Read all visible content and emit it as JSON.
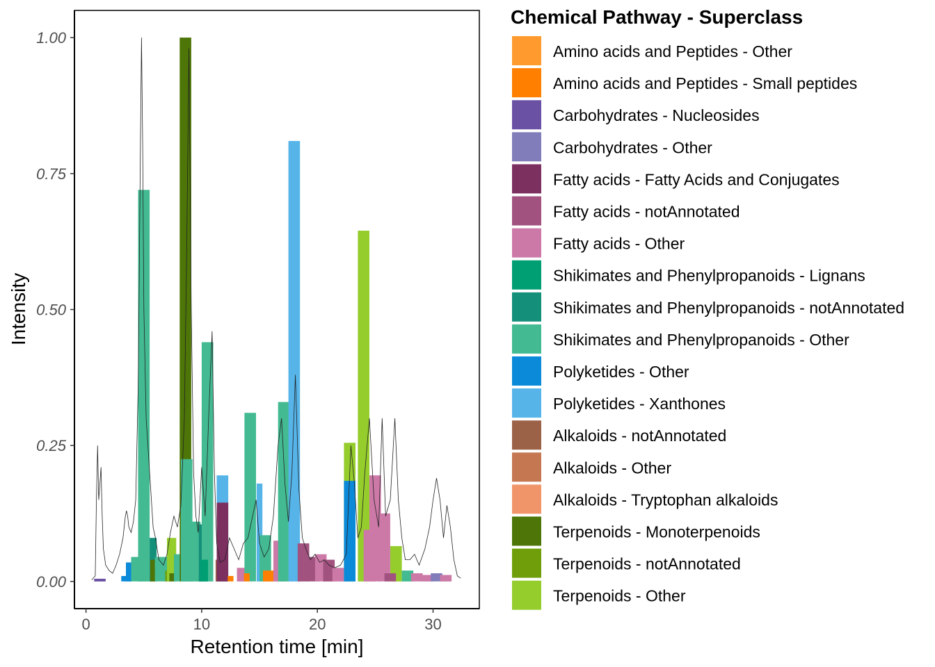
{
  "chart_data": {
    "type": "bar",
    "xlabel": "Retention time [min]",
    "ylabel": "Intensity",
    "xlim": [
      -1,
      34
    ],
    "ylim": [
      -0.05,
      1.05
    ],
    "x_ticks": [
      0,
      10,
      20,
      30
    ],
    "x_tick_labels": [
      "0",
      "10",
      "20",
      "30"
    ],
    "y_ticks": [
      0,
      0.25,
      0.5,
      0.75,
      1.0
    ],
    "y_tick_labels": [
      "0.00",
      "0.25",
      "0.50",
      "0.75",
      "1.00"
    ],
    "grid": false,
    "legend": {
      "title": "Chemical Pathway - Superclass",
      "position": "right",
      "entries": [
        {
          "label": "Amino acids and Peptides - Other",
          "color": "#FF9A2E"
        },
        {
          "label": "Amino acids and Peptides - Small peptides",
          "color": "#FF7F00"
        },
        {
          "label": "Carbohydrates - Nucleosides",
          "color": "#6A51A3"
        },
        {
          "label": "Carbohydrates - Other",
          "color": "#807DBA"
        },
        {
          "label": "Fatty acids - Fatty Acids and Conjugates",
          "color": "#7B3060"
        },
        {
          "label": "Fatty acids - notAnnotated",
          "color": "#A2527F"
        },
        {
          "label": "Fatty acids - Other",
          "color": "#CC79A7"
        },
        {
          "label": "Shikimates and Phenylpropanoids - Lignans",
          "color": "#009E73"
        },
        {
          "label": "Shikimates and Phenylpropanoids - notAnnotated",
          "color": "#138F7A"
        },
        {
          "label": "Shikimates and Phenylpropanoids - Other",
          "color": "#43BA92"
        },
        {
          "label": "Polyketides - Other",
          "color": "#0B8AD9"
        },
        {
          "label": "Polyketides - Xanthones",
          "color": "#56B4E9"
        },
        {
          "label": "Alkaloids - notAnnotated",
          "color": "#9C6248"
        },
        {
          "label": "Alkaloids - Other",
          "color": "#C57751"
        },
        {
          "label": "Alkaloids - Tryptophan alkaloids",
          "color": "#F0956A"
        },
        {
          "label": "Terpenoids - Monoterpenoids",
          "color": "#4D7508"
        },
        {
          "label": "Terpenoids - notAnnotated",
          "color": "#6F9E0A"
        },
        {
          "label": "Terpenoids - Other",
          "color": "#95CD2D"
        }
      ]
    },
    "bars": [
      {
        "x": 1.2,
        "width": 1.0,
        "y": 0.005,
        "class": 2
      },
      {
        "x": 3.3,
        "width": 0.5,
        "y": 0.01,
        "class": 10
      },
      {
        "x": 3.7,
        "width": 0.5,
        "y": 0.035,
        "class": 10
      },
      {
        "x": 4.2,
        "width": 0.6,
        "y": 0.045,
        "class": 9
      },
      {
        "x": 4.8,
        "width": 0.6,
        "y": 0.29,
        "class": 9
      },
      {
        "x": 5.0,
        "width": 1.0,
        "y": 0.72,
        "class": 9
      },
      {
        "x": 5.8,
        "width": 0.6,
        "y": 0.08,
        "class": 8
      },
      {
        "x": 5.8,
        "width": 0.5,
        "y": 0.04,
        "class": 15
      },
      {
        "x": 6.5,
        "width": 1.1,
        "y": 0.045,
        "class": 9
      },
      {
        "x": 7.1,
        "width": 0.5,
        "y": 0.02,
        "class": 16
      },
      {
        "x": 7.4,
        "width": 0.8,
        "y": 0.08,
        "class": 17
      },
      {
        "x": 7.5,
        "width": 0.6,
        "y": 0.015,
        "class": 15
      },
      {
        "x": 8.0,
        "width": 0.8,
        "y": 0.05,
        "class": 9
      },
      {
        "x": 8.6,
        "width": 1.0,
        "y": 1.0,
        "class": 15
      },
      {
        "x": 8.7,
        "width": 1.0,
        "y": 0.225,
        "class": 9
      },
      {
        "x": 9.5,
        "width": 0.8,
        "y": 0.11,
        "class": 9
      },
      {
        "x": 10.0,
        "width": 0.5,
        "y": 0.105,
        "class": 8
      },
      {
        "x": 10.5,
        "width": 1.0,
        "y": 0.44,
        "class": 9
      },
      {
        "x": 10.2,
        "width": 0.7,
        "y": 0.04,
        "class": 7
      },
      {
        "x": 11.5,
        "width": 0.6,
        "y": 0.04,
        "class": 12
      },
      {
        "x": 11.8,
        "width": 1.0,
        "y": 0.195,
        "class": 11
      },
      {
        "x": 11.8,
        "width": 1.0,
        "y": 0.145,
        "class": 4
      },
      {
        "x": 12.5,
        "width": 0.5,
        "y": 0.01,
        "class": 1
      },
      {
        "x": 13.4,
        "width": 0.7,
        "y": 0.025,
        "class": 6
      },
      {
        "x": 14.2,
        "width": 1.0,
        "y": 0.31,
        "class": 9
      },
      {
        "x": 13.9,
        "width": 0.5,
        "y": 0.015,
        "class": 1
      },
      {
        "x": 15.0,
        "width": 0.5,
        "y": 0.18,
        "class": 11
      },
      {
        "x": 15.5,
        "width": 1.0,
        "y": 0.085,
        "class": 9
      },
      {
        "x": 15.8,
        "width": 1.0,
        "y": 0.02,
        "class": 1
      },
      {
        "x": 16.7,
        "width": 1.0,
        "y": 0.075,
        "class": 6
      },
      {
        "x": 17.1,
        "width": 1.0,
        "y": 0.33,
        "class": 9
      },
      {
        "x": 18.0,
        "width": 1.0,
        "y": 0.81,
        "class": 11
      },
      {
        "x": 18.8,
        "width": 1.0,
        "y": 0.07,
        "class": 5
      },
      {
        "x": 19.7,
        "width": 1.0,
        "y": 0.045,
        "class": 5
      },
      {
        "x": 20.3,
        "width": 1.0,
        "y": 0.05,
        "class": 6
      },
      {
        "x": 21.0,
        "width": 1.0,
        "y": 0.04,
        "class": 5
      },
      {
        "x": 21.8,
        "width": 1.0,
        "y": 0.025,
        "class": 6
      },
      {
        "x": 22.8,
        "width": 1.0,
        "y": 0.255,
        "class": 17
      },
      {
        "x": 22.8,
        "width": 1.0,
        "y": 0.185,
        "class": 10
      },
      {
        "x": 24.0,
        "width": 1.0,
        "y": 0.645,
        "class": 17
      },
      {
        "x": 24.5,
        "width": 1.0,
        "y": 0.095,
        "class": 6
      },
      {
        "x": 25.0,
        "width": 1.0,
        "y": 0.195,
        "class": 6
      },
      {
        "x": 25.8,
        "width": 1.0,
        "y": 0.125,
        "class": 6
      },
      {
        "x": 26.8,
        "width": 1.0,
        "y": 0.065,
        "class": 17
      },
      {
        "x": 26.3,
        "width": 1.0,
        "y": 0.015,
        "class": 5
      },
      {
        "x": 27.8,
        "width": 1.0,
        "y": 0.02,
        "class": 9
      },
      {
        "x": 28.6,
        "width": 1.0,
        "y": 0.015,
        "class": 6
      },
      {
        "x": 29.5,
        "width": 1.0,
        "y": 0.012,
        "class": 6
      },
      {
        "x": 30.3,
        "width": 1.0,
        "y": 0.015,
        "class": 3
      },
      {
        "x": 31.1,
        "width": 1.0,
        "y": 0.012,
        "class": 6
      }
    ],
    "chromatogram": [
      [
        0.5,
        0.003
      ],
      [
        0.8,
        0.01
      ],
      [
        0.9,
        0.15
      ],
      [
        1.0,
        0.25
      ],
      [
        1.1,
        0.15
      ],
      [
        1.2,
        0.18
      ],
      [
        1.3,
        0.21
      ],
      [
        1.4,
        0.12
      ],
      [
        1.5,
        0.06
      ],
      [
        1.7,
        0.03
      ],
      [
        2.0,
        0.02
      ],
      [
        2.3,
        0.015
      ],
      [
        2.6,
        0.03
      ],
      [
        2.9,
        0.05
      ],
      [
        3.2,
        0.08
      ],
      [
        3.4,
        0.12
      ],
      [
        3.5,
        0.13
      ],
      [
        3.6,
        0.12
      ],
      [
        3.7,
        0.1
      ],
      [
        3.9,
        0.09
      ],
      [
        4.1,
        0.11
      ],
      [
        4.3,
        0.15
      ],
      [
        4.5,
        0.35
      ],
      [
        4.6,
        0.55
      ],
      [
        4.7,
        0.8
      ],
      [
        4.8,
        1.0
      ],
      [
        4.9,
        0.8
      ],
      [
        5.0,
        0.5
      ],
      [
        5.2,
        0.3
      ],
      [
        5.5,
        0.2
      ],
      [
        5.8,
        0.1
      ],
      [
        6.0,
        0.08
      ],
      [
        6.3,
        0.04
      ],
      [
        6.7,
        0.03
      ],
      [
        7.0,
        0.05
      ],
      [
        7.3,
        0.09
      ],
      [
        7.6,
        0.12
      ],
      [
        7.9,
        0.1
      ],
      [
        8.2,
        0.14
      ],
      [
        8.5,
        0.3
      ],
      [
        8.7,
        0.6
      ],
      [
        8.9,
        0.98
      ],
      [
        9.1,
        0.5
      ],
      [
        9.3,
        0.2
      ],
      [
        9.5,
        0.12
      ],
      [
        9.7,
        0.09
      ],
      [
        10.0,
        0.21
      ],
      [
        10.3,
        0.12
      ],
      [
        10.6,
        0.3
      ],
      [
        10.9,
        0.46
      ],
      [
        11.1,
        0.2
      ],
      [
        11.3,
        0.07
      ],
      [
        11.6,
        0.035
      ],
      [
        12.0,
        0.04
      ],
      [
        12.4,
        0.08
      ],
      [
        12.8,
        0.06
      ],
      [
        13.2,
        0.04
      ],
      [
        13.6,
        0.07
      ],
      [
        14.0,
        0.08
      ],
      [
        14.4,
        0.12
      ],
      [
        14.7,
        0.15
      ],
      [
        15.0,
        0.07
      ],
      [
        15.4,
        0.045
      ],
      [
        15.8,
        0.06
      ],
      [
        16.2,
        0.12
      ],
      [
        16.6,
        0.25
      ],
      [
        16.9,
        0.3
      ],
      [
        17.2,
        0.18
      ],
      [
        17.5,
        0.11
      ],
      [
        17.8,
        0.2
      ],
      [
        18.1,
        0.38
      ],
      [
        18.4,
        0.17
      ],
      [
        18.7,
        0.08
      ],
      [
        19.0,
        0.06
      ],
      [
        19.4,
        0.04
      ],
      [
        19.8,
        0.05
      ],
      [
        20.2,
        0.035
      ],
      [
        20.6,
        0.04
      ],
      [
        21.0,
        0.03
      ],
      [
        21.5,
        0.025
      ],
      [
        22.0,
        0.03
      ],
      [
        22.5,
        0.05
      ],
      [
        22.9,
        0.25
      ],
      [
        23.2,
        0.18
      ],
      [
        23.5,
        0.08
      ],
      [
        23.8,
        0.1
      ],
      [
        24.1,
        0.2
      ],
      [
        24.5,
        0.3
      ],
      [
        24.9,
        0.15
      ],
      [
        25.3,
        0.1
      ],
      [
        25.6,
        0.3
      ],
      [
        25.9,
        0.12
      ],
      [
        26.3,
        0.15
      ],
      [
        26.7,
        0.3
      ],
      [
        27.0,
        0.15
      ],
      [
        27.3,
        0.08
      ],
      [
        27.6,
        0.04
      ],
      [
        28.0,
        0.04
      ],
      [
        28.4,
        0.05
      ],
      [
        28.8,
        0.03
      ],
      [
        29.3,
        0.06
      ],
      [
        29.7,
        0.1
      ],
      [
        30.0,
        0.15
      ],
      [
        30.3,
        0.19
      ],
      [
        30.6,
        0.15
      ],
      [
        30.9,
        0.08
      ],
      [
        31.2,
        0.14
      ],
      [
        31.5,
        0.1
      ],
      [
        31.8,
        0.04
      ],
      [
        32.1,
        0.01
      ],
      [
        32.4,
        0.006
      ]
    ]
  }
}
